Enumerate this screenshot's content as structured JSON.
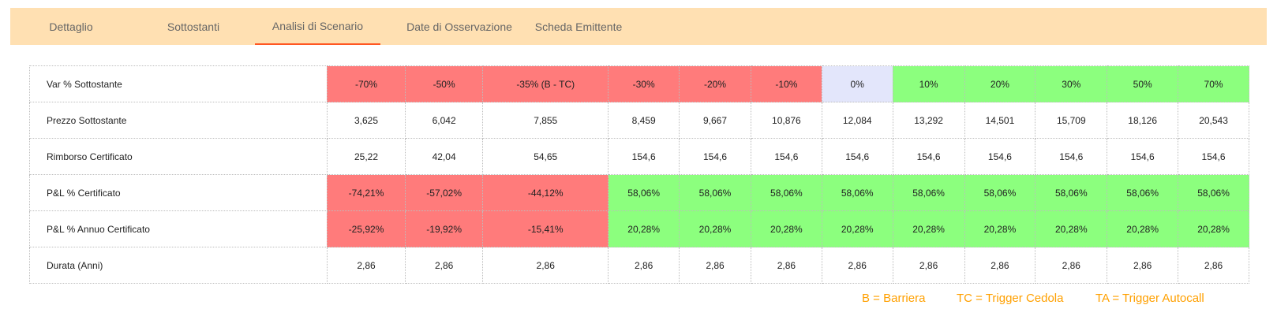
{
  "tabs": [
    {
      "label": "Dettaglio",
      "active": false
    },
    {
      "label": "Sottostanti",
      "active": false
    },
    {
      "label": "Analisi di Scenario",
      "active": true
    },
    {
      "label": "Date di Osservazione",
      "active": false
    },
    {
      "label": "Scheda Emittente",
      "active": false
    }
  ],
  "colors": {
    "tab_bar": "#ffe0b2",
    "active_tab_underline": "#ff5722",
    "loss": "#ff7b7b",
    "gain": "#8cff7e",
    "neutral": "#e3e6fb",
    "legend_text": "#ffa000"
  },
  "table": {
    "rows": [
      {
        "label": "Var % Sottostante",
        "cells": [
          {
            "text": "-70%",
            "tone": "red"
          },
          {
            "text": "-50%",
            "tone": "red"
          },
          {
            "text": "-35% (B - TC)",
            "tone": "red"
          },
          {
            "text": "-30%",
            "tone": "red"
          },
          {
            "text": "-20%",
            "tone": "red"
          },
          {
            "text": "-10%",
            "tone": "red"
          },
          {
            "text": "0%",
            "tone": "neutral"
          },
          {
            "text": "10%",
            "tone": "green"
          },
          {
            "text": "20%",
            "tone": "green"
          },
          {
            "text": "30%",
            "tone": "green"
          },
          {
            "text": "50%",
            "tone": "green"
          },
          {
            "text": "70%",
            "tone": "green"
          }
        ]
      },
      {
        "label": "Prezzo Sottostante",
        "cells": [
          {
            "text": "3,625",
            "tone": "none"
          },
          {
            "text": "6,042",
            "tone": "none"
          },
          {
            "text": "7,855",
            "tone": "none"
          },
          {
            "text": "8,459",
            "tone": "none"
          },
          {
            "text": "9,667",
            "tone": "none"
          },
          {
            "text": "10,876",
            "tone": "none"
          },
          {
            "text": "12,084",
            "tone": "none"
          },
          {
            "text": "13,292",
            "tone": "none"
          },
          {
            "text": "14,501",
            "tone": "none"
          },
          {
            "text": "15,709",
            "tone": "none"
          },
          {
            "text": "18,126",
            "tone": "none"
          },
          {
            "text": "20,543",
            "tone": "none"
          }
        ]
      },
      {
        "label": "Rimborso Certificato",
        "cells": [
          {
            "text": "25,22",
            "tone": "none"
          },
          {
            "text": "42,04",
            "tone": "none"
          },
          {
            "text": "54,65",
            "tone": "none"
          },
          {
            "text": "154,6",
            "tone": "none"
          },
          {
            "text": "154,6",
            "tone": "none"
          },
          {
            "text": "154,6",
            "tone": "none"
          },
          {
            "text": "154,6",
            "tone": "none"
          },
          {
            "text": "154,6",
            "tone": "none"
          },
          {
            "text": "154,6",
            "tone": "none"
          },
          {
            "text": "154,6",
            "tone": "none"
          },
          {
            "text": "154,6",
            "tone": "none"
          },
          {
            "text": "154,6",
            "tone": "none"
          }
        ]
      },
      {
        "label": "P&L % Certificato",
        "cells": [
          {
            "text": "-74,21%",
            "tone": "red"
          },
          {
            "text": "-57,02%",
            "tone": "red"
          },
          {
            "text": "-44,12%",
            "tone": "red"
          },
          {
            "text": "58,06%",
            "tone": "green"
          },
          {
            "text": "58,06%",
            "tone": "green"
          },
          {
            "text": "58,06%",
            "tone": "green"
          },
          {
            "text": "58,06%",
            "tone": "green"
          },
          {
            "text": "58,06%",
            "tone": "green"
          },
          {
            "text": "58,06%",
            "tone": "green"
          },
          {
            "text": "58,06%",
            "tone": "green"
          },
          {
            "text": "58,06%",
            "tone": "green"
          },
          {
            "text": "58,06%",
            "tone": "green"
          }
        ]
      },
      {
        "label": "P&L % Annuo Certificato",
        "cells": [
          {
            "text": "-25,92%",
            "tone": "red"
          },
          {
            "text": "-19,92%",
            "tone": "red"
          },
          {
            "text": "-15,41%",
            "tone": "red"
          },
          {
            "text": "20,28%",
            "tone": "green"
          },
          {
            "text": "20,28%",
            "tone": "green"
          },
          {
            "text": "20,28%",
            "tone": "green"
          },
          {
            "text": "20,28%",
            "tone": "green"
          },
          {
            "text": "20,28%",
            "tone": "green"
          },
          {
            "text": "20,28%",
            "tone": "green"
          },
          {
            "text": "20,28%",
            "tone": "green"
          },
          {
            "text": "20,28%",
            "tone": "green"
          },
          {
            "text": "20,28%",
            "tone": "green"
          }
        ]
      },
      {
        "label": "Durata (Anni)",
        "cells": [
          {
            "text": "2,86",
            "tone": "none"
          },
          {
            "text": "2,86",
            "tone": "none"
          },
          {
            "text": "2,86",
            "tone": "none"
          },
          {
            "text": "2,86",
            "tone": "none"
          },
          {
            "text": "2,86",
            "tone": "none"
          },
          {
            "text": "2,86",
            "tone": "none"
          },
          {
            "text": "2,86",
            "tone": "none"
          },
          {
            "text": "2,86",
            "tone": "none"
          },
          {
            "text": "2,86",
            "tone": "none"
          },
          {
            "text": "2,86",
            "tone": "none"
          },
          {
            "text": "2,86",
            "tone": "none"
          },
          {
            "text": "2,86",
            "tone": "none"
          }
        ]
      }
    ]
  },
  "legend": {
    "barriera": "B = Barriera",
    "trigger_cedola": "TC = Trigger Cedola",
    "trigger_autocall": "TA = Trigger Autocall"
  }
}
